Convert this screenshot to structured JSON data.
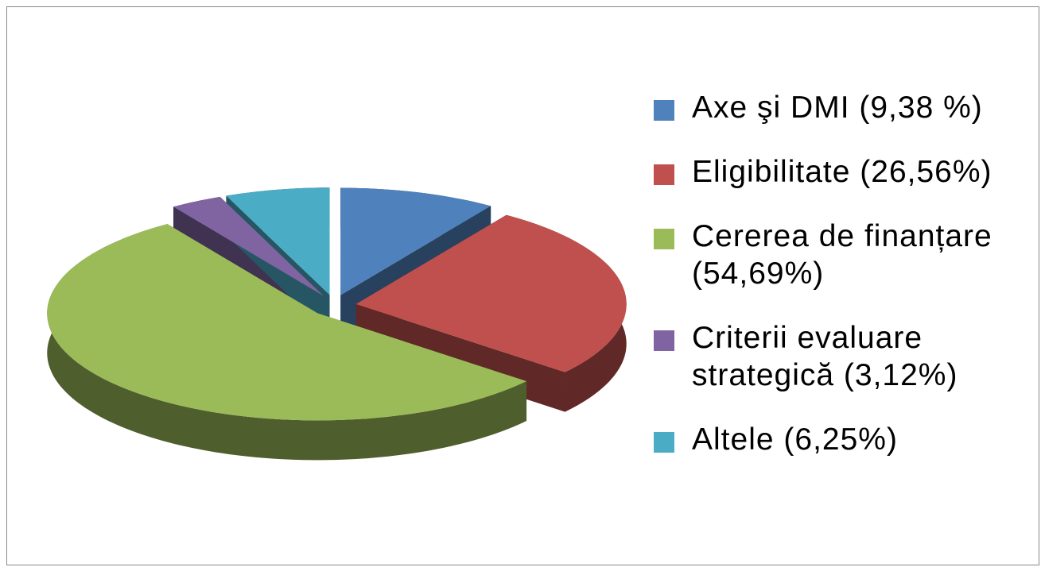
{
  "chart_data": {
    "type": "pie",
    "categories": [
      "Axe şi DMI (9,38 %)",
      "Eligibilitate (26,56%)",
      "Cererea de finanțare (54,69%)",
      "Criterii evaluare strategică (3,12%)",
      "Altele (6,25%)"
    ],
    "values": [
      9.38,
      26.56,
      54.69,
      3.12,
      6.25
    ],
    "colors": [
      "#4f81bd",
      "#c0504d",
      "#9bbb59",
      "#8064a2",
      "#4bacc6"
    ],
    "legend": "right"
  }
}
